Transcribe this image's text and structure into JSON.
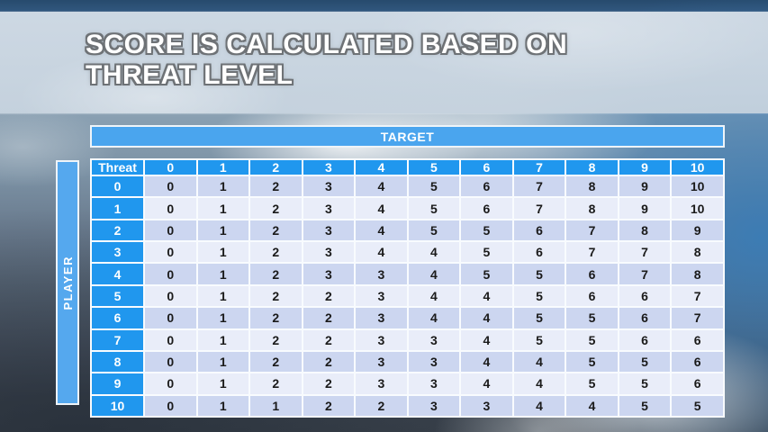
{
  "slide": {
    "title_line1": "SCORE IS CALCULATED BASED ON",
    "title_line2": "THREAT LEVEL"
  },
  "matrix": {
    "target_axis_label": "TARGET",
    "player_axis_label": "PLAYER",
    "corner_label": "Threat",
    "target_levels": [
      "0",
      "1",
      "2",
      "3",
      "4",
      "5",
      "6",
      "7",
      "8",
      "9",
      "10"
    ],
    "rows": [
      {
        "threat": "0",
        "values": [
          "0",
          "1",
          "2",
          "3",
          "4",
          "5",
          "6",
          "7",
          "8",
          "9",
          "10"
        ]
      },
      {
        "threat": "1",
        "values": [
          "0",
          "1",
          "2",
          "3",
          "4",
          "5",
          "6",
          "7",
          "8",
          "9",
          "10"
        ]
      },
      {
        "threat": "2",
        "values": [
          "0",
          "1",
          "2",
          "3",
          "4",
          "5",
          "5",
          "6",
          "7",
          "8",
          "9"
        ]
      },
      {
        "threat": "3",
        "values": [
          "0",
          "1",
          "2",
          "3",
          "4",
          "4",
          "5",
          "6",
          "7",
          "7",
          "8"
        ]
      },
      {
        "threat": "4",
        "values": [
          "0",
          "1",
          "2",
          "3",
          "3",
          "4",
          "5",
          "5",
          "6",
          "7",
          "8"
        ]
      },
      {
        "threat": "5",
        "values": [
          "0",
          "1",
          "2",
          "2",
          "3",
          "4",
          "4",
          "5",
          "6",
          "6",
          "7"
        ]
      },
      {
        "threat": "6",
        "values": [
          "0",
          "1",
          "2",
          "2",
          "3",
          "4",
          "4",
          "5",
          "5",
          "6",
          "7"
        ]
      },
      {
        "threat": "7",
        "values": [
          "0",
          "1",
          "2",
          "2",
          "3",
          "3",
          "4",
          "5",
          "5",
          "6",
          "6"
        ]
      },
      {
        "threat": "8",
        "values": [
          "0",
          "1",
          "2",
          "2",
          "3",
          "3",
          "4",
          "4",
          "5",
          "5",
          "6"
        ]
      },
      {
        "threat": "9",
        "values": [
          "0",
          "1",
          "2",
          "2",
          "3",
          "3",
          "4",
          "4",
          "5",
          "5",
          "6"
        ]
      },
      {
        "threat": "10",
        "values": [
          "0",
          "1",
          "1",
          "2",
          "2",
          "3",
          "3",
          "4",
          "4",
          "5",
          "5"
        ]
      }
    ]
  },
  "chart_data": {
    "type": "table",
    "title": "Score is calculated based on threat level",
    "column_axis_label": "TARGET",
    "row_axis_label": "PLAYER",
    "columns": [
      "Threat",
      "0",
      "1",
      "2",
      "3",
      "4",
      "5",
      "6",
      "7",
      "8",
      "9",
      "10"
    ],
    "rows": [
      [
        "0",
        "0",
        "1",
        "2",
        "3",
        "4",
        "5",
        "6",
        "7",
        "8",
        "9",
        "10"
      ],
      [
        "1",
        "0",
        "1",
        "2",
        "3",
        "4",
        "5",
        "6",
        "7",
        "8",
        "9",
        "10"
      ],
      [
        "2",
        "0",
        "1",
        "2",
        "3",
        "4",
        "5",
        "5",
        "6",
        "7",
        "8",
        "9"
      ],
      [
        "3",
        "0",
        "1",
        "2",
        "3",
        "4",
        "4",
        "5",
        "6",
        "7",
        "7",
        "8"
      ],
      [
        "4",
        "0",
        "1",
        "2",
        "3",
        "3",
        "4",
        "5",
        "5",
        "6",
        "7",
        "8"
      ],
      [
        "5",
        "0",
        "1",
        "2",
        "2",
        "3",
        "4",
        "4",
        "5",
        "6",
        "6",
        "7"
      ],
      [
        "6",
        "0",
        "1",
        "2",
        "2",
        "3",
        "4",
        "4",
        "5",
        "5",
        "6",
        "7"
      ],
      [
        "7",
        "0",
        "1",
        "2",
        "2",
        "3",
        "3",
        "4",
        "5",
        "5",
        "6",
        "6"
      ],
      [
        "8",
        "0",
        "1",
        "2",
        "2",
        "3",
        "3",
        "4",
        "4",
        "5",
        "5",
        "6"
      ],
      [
        "9",
        "0",
        "1",
        "2",
        "2",
        "3",
        "3",
        "4",
        "4",
        "5",
        "5",
        "6"
      ],
      [
        "10",
        "0",
        "1",
        "1",
        "2",
        "2",
        "3",
        "3",
        "4",
        "4",
        "5",
        "5"
      ]
    ]
  },
  "colors": {
    "header_blue": "#2097ee",
    "target_bar_blue": "#4aa5ee",
    "player_bar_blue": "#55a8ee",
    "row_even": "#ccd6f0",
    "row_odd": "#e9edf9",
    "cell_border": "#f8fbfe",
    "body_text": "#1a1a1a"
  }
}
